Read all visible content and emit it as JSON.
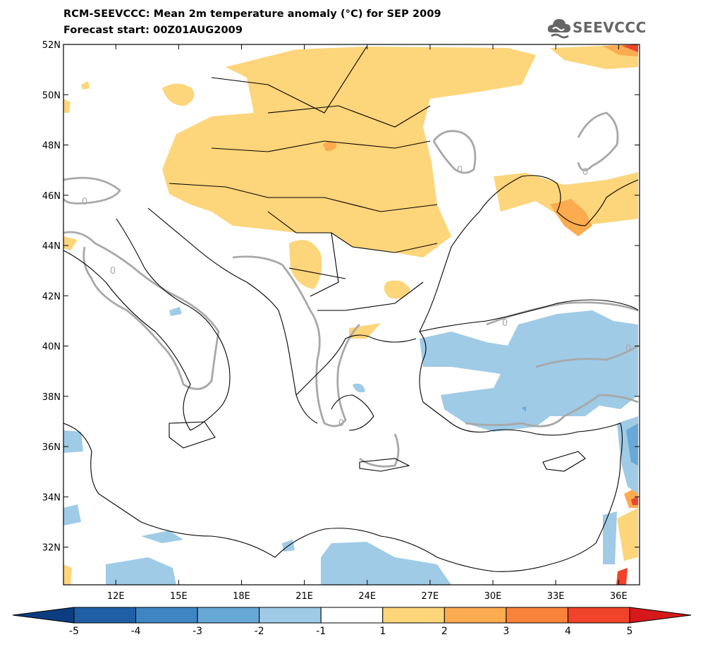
{
  "title_line1": "RCM-SEEVCCC: Mean 2m temperature anomaly (°C) for SEP 2009",
  "title_line2": "Forecast start: 00Z01AUG2009",
  "logo": {
    "text": "SEEVCCC",
    "icon": "cloud-logo-icon"
  },
  "map": {
    "lon_range": [
      9.5,
      37.0
    ],
    "lat_range": [
      30.5,
      52.0
    ],
    "lat_ticks": [
      "52N",
      "50N",
      "48N",
      "46N",
      "44N",
      "42N",
      "40N",
      "38N",
      "36N",
      "34N",
      "32N"
    ],
    "lat_values": [
      52,
      50,
      48,
      46,
      44,
      42,
      40,
      38,
      36,
      34,
      32
    ],
    "lon_ticks": [
      "12E",
      "15E",
      "18E",
      "21E",
      "24E",
      "27E",
      "30E",
      "33E",
      "36E"
    ],
    "lon_values": [
      12,
      15,
      18,
      21,
      24,
      27,
      30,
      33,
      36
    ],
    "contour_label": "0",
    "colors": {
      "land_line": "#000000",
      "zero_contour": "#a8a8a8",
      "warm1": "#fdd57a",
      "warm2": "#fcab4f",
      "warm3": "#f9833b",
      "warm4": "#f0432a",
      "cool1": "#9fcbe6",
      "cool2": "#68a8d6",
      "cool3": "#3e86c3"
    }
  },
  "colorbar": {
    "labels": [
      "-5",
      "-4",
      "-3",
      "-2",
      "-1",
      "1",
      "2",
      "3",
      "4",
      "5"
    ],
    "colors": [
      "#1f5fa6",
      "#3e86c3",
      "#68a8d6",
      "#9fcbe6",
      "#ffffff",
      "#fdd57a",
      "#fcab4f",
      "#f9833b",
      "#f0432a"
    ],
    "under_color": "#0d3d80",
    "over_color": "#d7191c"
  }
}
